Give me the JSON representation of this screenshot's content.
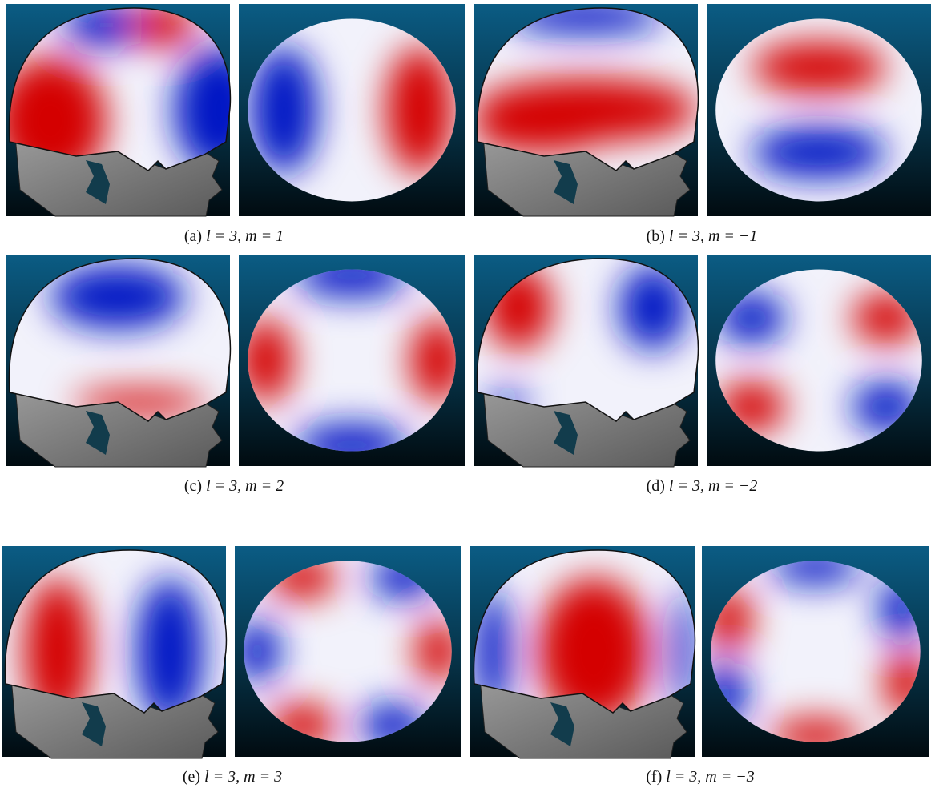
{
  "figures": [
    {
      "label": "(a)",
      "caption": "l = 3, m = 1"
    },
    {
      "label": "(b)",
      "caption": "l = 3, m = −1"
    },
    {
      "label": "(c)",
      "caption": "l = 3, m = 2"
    },
    {
      "label": "(d)",
      "caption": "l = 3, m = −2"
    },
    {
      "label": "(e)",
      "caption": "l = 3, m = 3"
    },
    {
      "label": "(f)",
      "caption": "l = 3, m = −3"
    }
  ]
}
